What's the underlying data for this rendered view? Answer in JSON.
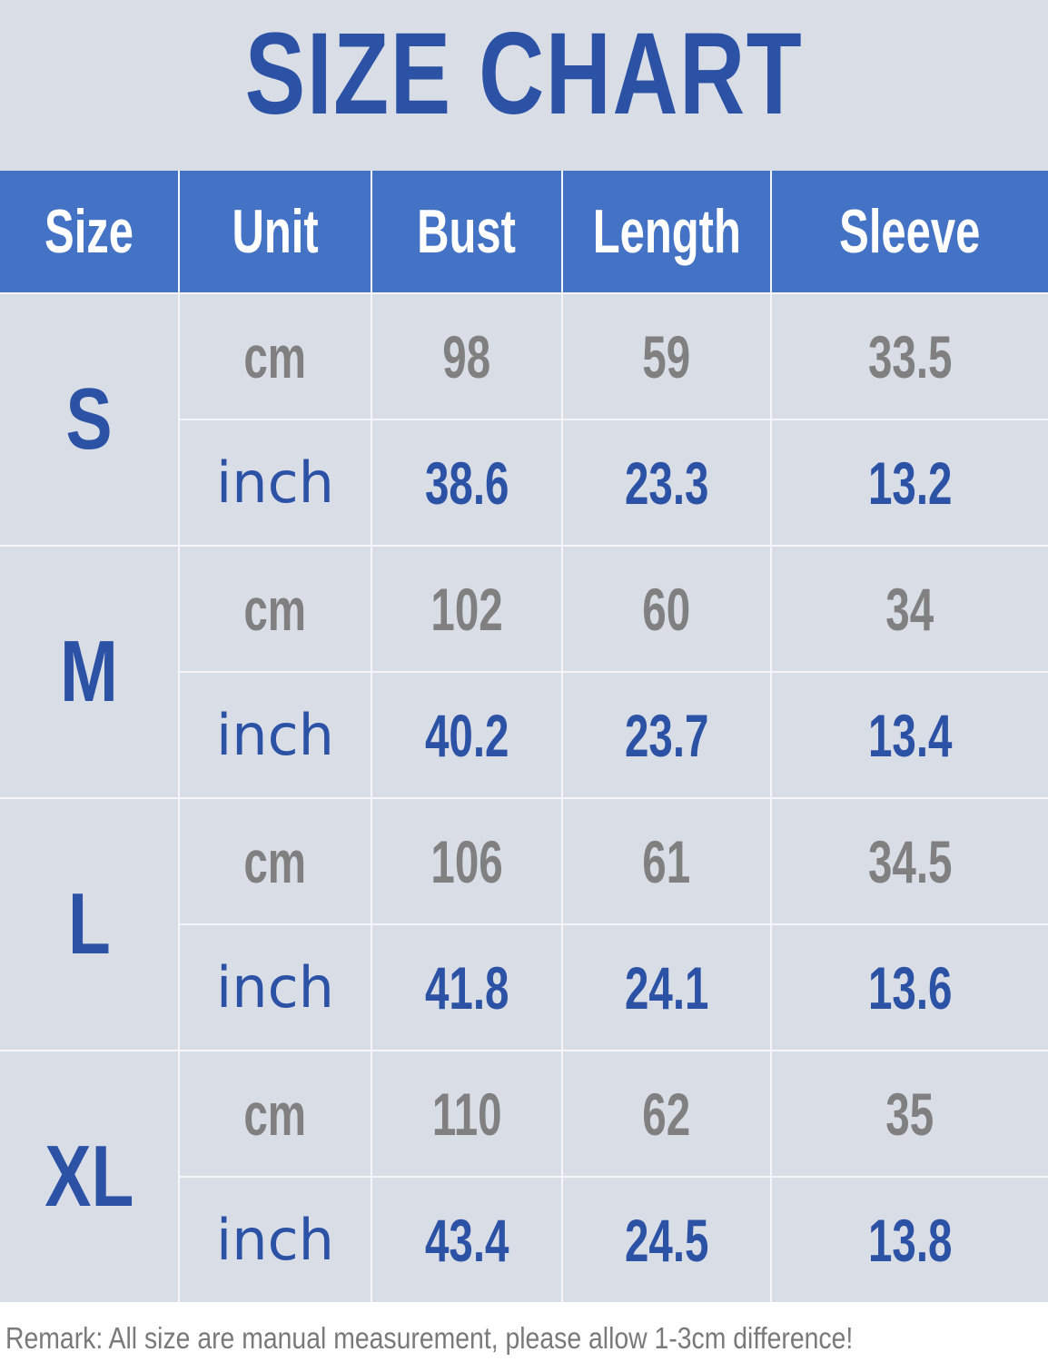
{
  "title": "SIZE CHART",
  "colors": {
    "header_bg": "#4472c4",
    "body_bg": "#d9dde6",
    "blue_text": "#2c52a5",
    "grey_text": "#808080"
  },
  "headers": [
    "Size",
    "Unit",
    "Bust",
    "Length",
    "Sleeve"
  ],
  "rows": [
    {
      "size": "S",
      "cm": {
        "unit": "cm",
        "values": [
          "98",
          "59",
          "33.5"
        ]
      },
      "inch": {
        "unit": "inch",
        "values": [
          "38.6",
          "23.3",
          "13.2"
        ]
      }
    },
    {
      "size": "M",
      "cm": {
        "unit": "cm",
        "values": [
          "102",
          "60",
          "34"
        ]
      },
      "inch": {
        "unit": "inch",
        "values": [
          "40.2",
          "23.7",
          "13.4"
        ]
      }
    },
    {
      "size": "L",
      "cm": {
        "unit": "cm",
        "values": [
          "106",
          "61",
          "34.5"
        ]
      },
      "inch": {
        "unit": "inch",
        "values": [
          "41.8",
          "24.1",
          "13.6"
        ]
      }
    },
    {
      "size": "XL",
      "cm": {
        "unit": "cm",
        "values": [
          "110",
          "62",
          "35"
        ]
      },
      "inch": {
        "unit": "inch",
        "values": [
          "43.4",
          "24.5",
          "13.8"
        ]
      }
    }
  ],
  "remark": "Remark: All size are manual measurement, please allow 1-3cm difference!"
}
